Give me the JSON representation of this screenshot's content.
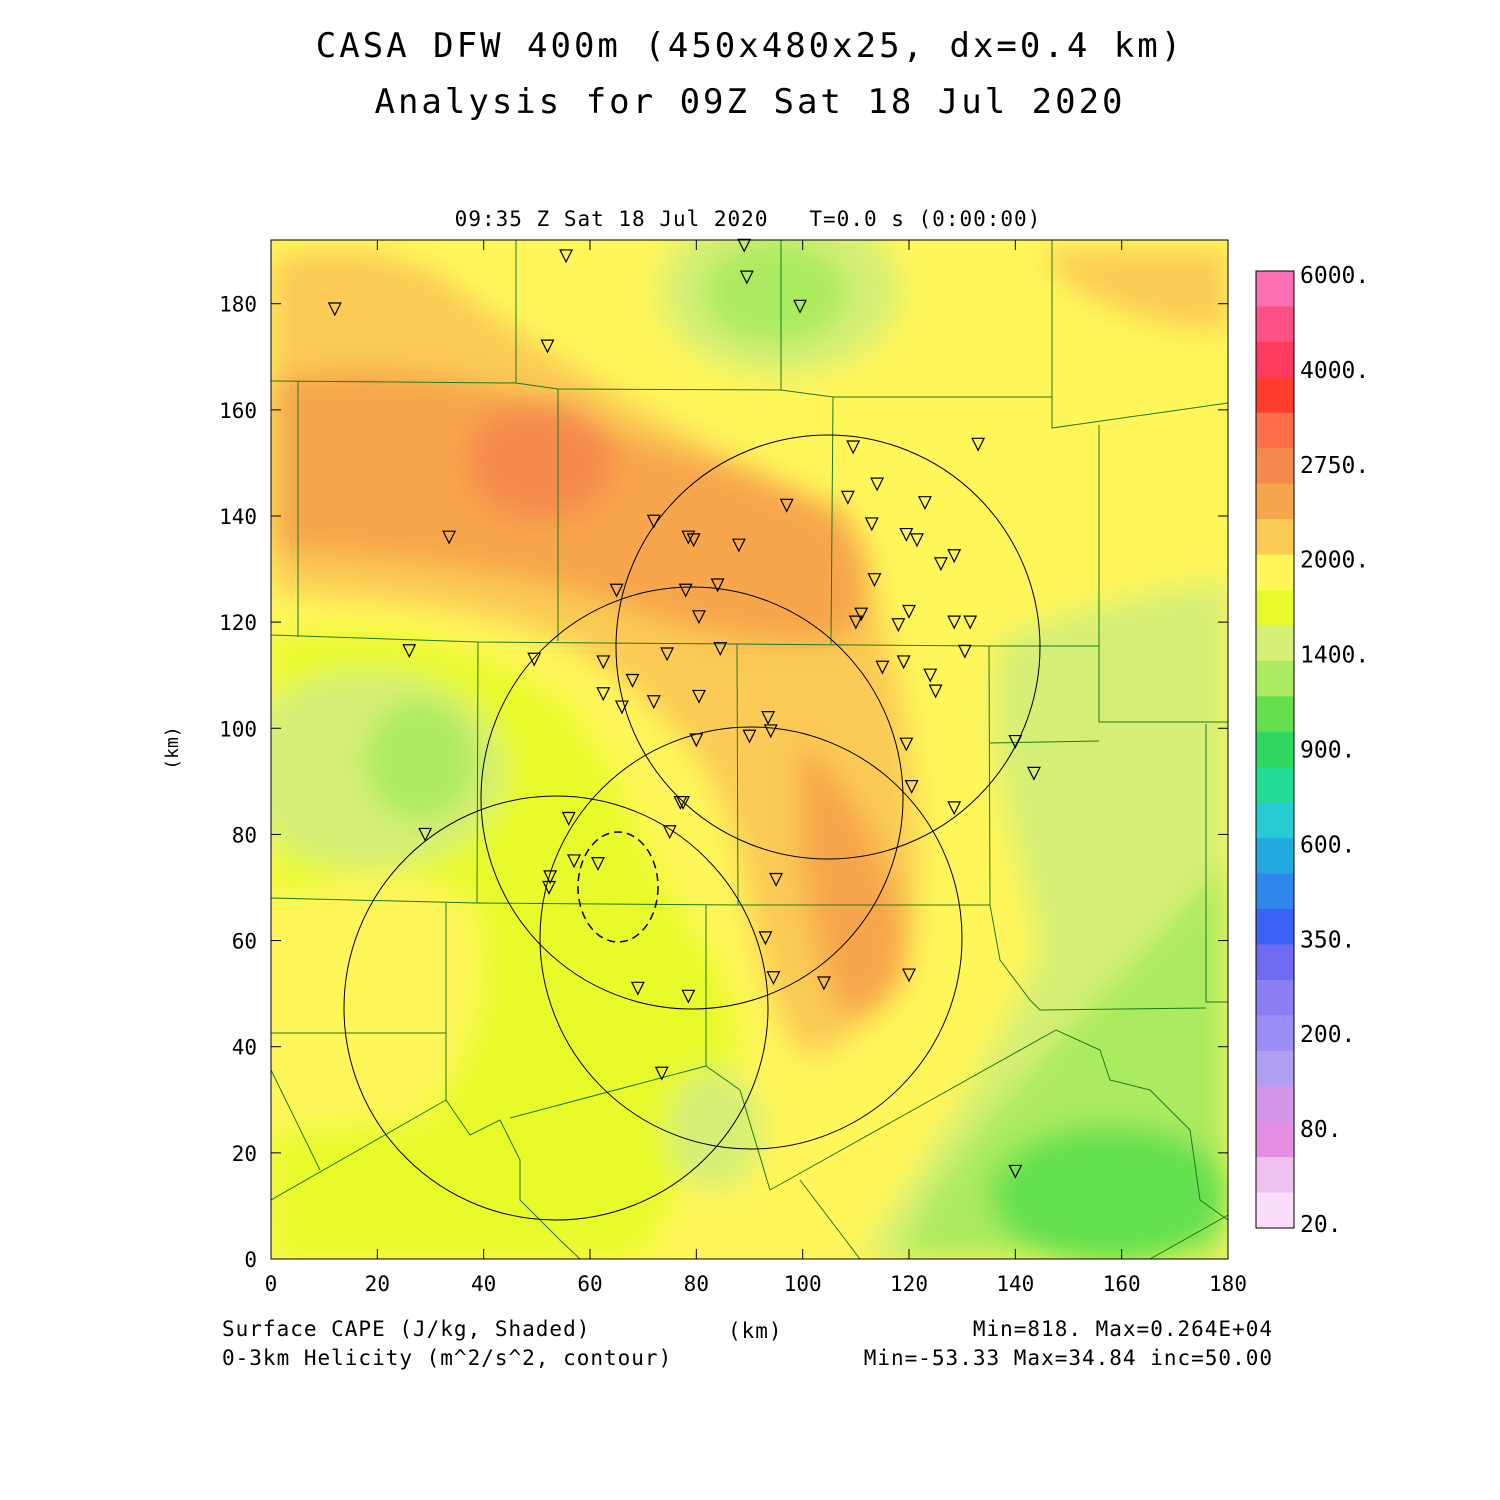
{
  "title_line1": "CASA DFW 400m (450x480x25, dx=0.4 km)",
  "title_line2": "Analysis for 09Z Sat 18 Jul 2020",
  "subtitle": "09:35 Z Sat 18 Jul 2020   T=0.0 s (0:00:00)",
  "x_axis": {
    "label": "(km)",
    "ticks": [
      0,
      20,
      40,
      60,
      80,
      100,
      120,
      140,
      160,
      180
    ],
    "range": [
      0,
      180
    ]
  },
  "y_axis": {
    "label": "(km)",
    "ticks": [
      0,
      20,
      40,
      60,
      80,
      100,
      120,
      140,
      160,
      180
    ],
    "range": [
      0,
      192
    ]
  },
  "colorbar": {
    "labels": [
      "6000.",
      "4000.",
      "2750.",
      "2000.",
      "1400.",
      "900.",
      "600.",
      "350.",
      "200.",
      "80.",
      "20."
    ],
    "colors": [
      "#ff6fb4",
      "#ff4f86",
      "#ff3a5f",
      "#ff3d2e",
      "#ff6e48",
      "#f58a4e",
      "#f7a64c",
      "#fbcb55",
      "#fff65a",
      "#e8fa2c",
      "#d6ef76",
      "#abeb5f",
      "#64e04f",
      "#2ed860",
      "#22dc96",
      "#26ccd2",
      "#23a9df",
      "#2f87ec",
      "#3a62f7",
      "#6f6af0",
      "#8b7ef4",
      "#9c8ef7",
      "#b09ef2",
      "#d295e8",
      "#e48fe4",
      "#eec1ee",
      "#fadcfb"
    ]
  },
  "footer": {
    "left1": "Surface CAPE (J/kg, Shaded)",
    "left2": "0-3km Helicity (m^2/s^2, contour)",
    "center": "(km)",
    "right1": "Min=818. Max=0.264E+04",
    "right2": "Min=-53.33 Max=34.84 inc=50.00"
  },
  "colors": {
    "background": "#ffffff",
    "county_lines": "#1f7a1f",
    "contours": "#000000"
  },
  "stations": [
    [
      12,
      179
    ],
    [
      33.5,
      136
    ],
    [
      26,
      114.6
    ],
    [
      29,
      80
    ],
    [
      49.5,
      113
    ],
    [
      52,
      172
    ],
    [
      55.5,
      189
    ],
    [
      52.5,
      72
    ],
    [
      52.3,
      70
    ],
    [
      56,
      83
    ],
    [
      57,
      75
    ],
    [
      61.5,
      74.5
    ],
    [
      62.5,
      112.5
    ],
    [
      62.5,
      106.5
    ],
    [
      65,
      126
    ],
    [
      66,
      104
    ],
    [
      68,
      109
    ],
    [
      69,
      51
    ],
    [
      72,
      139
    ],
    [
      72,
      105
    ],
    [
      74.5,
      114
    ],
    [
      75,
      80.5
    ],
    [
      73.5,
      35
    ],
    [
      77,
      86
    ],
    [
      77.5,
      86
    ],
    [
      78,
      126
    ],
    [
      78.5,
      136
    ],
    [
      79.5,
      135.5
    ],
    [
      80,
      97.8
    ],
    [
      80.5,
      121
    ],
    [
      80.5,
      106
    ],
    [
      78.5,
      49.5
    ],
    [
      84.5,
      115
    ],
    [
      84,
      127
    ],
    [
      88,
      134.5
    ],
    [
      89,
      191
    ],
    [
      89.5,
      185
    ],
    [
      90,
      98.5
    ],
    [
      93,
      60.5
    ],
    [
      93.5,
      102
    ],
    [
      94,
      99.5
    ],
    [
      94.5,
      53
    ],
    [
      95,
      71.5
    ],
    [
      97,
      142
    ],
    [
      99.5,
      179.5
    ],
    [
      104,
      52
    ],
    [
      108.5,
      143.5
    ],
    [
      109.5,
      153
    ],
    [
      110,
      120
    ],
    [
      111,
      121.5
    ],
    [
      113,
      138.5
    ],
    [
      113.5,
      128
    ],
    [
      114,
      146
    ],
    [
      115,
      111.5
    ],
    [
      118,
      119.5
    ],
    [
      119,
      112.5
    ],
    [
      119.5,
      136.5
    ],
    [
      119.5,
      97
    ],
    [
      120,
      122
    ],
    [
      120,
      53.5
    ],
    [
      120.5,
      89
    ],
    [
      121.5,
      135.5
    ],
    [
      123,
      142.5
    ],
    [
      124,
      110
    ],
    [
      125,
      107
    ],
    [
      126,
      131
    ],
    [
      128.5,
      132.5
    ],
    [
      128.5,
      120
    ],
    [
      128.5,
      85
    ],
    [
      130.5,
      114.5
    ],
    [
      131.5,
      120
    ],
    [
      133,
      153.5
    ],
    [
      140,
      97.5
    ],
    [
      140,
      16.5
    ],
    [
      143.5,
      91.5
    ]
  ]
}
